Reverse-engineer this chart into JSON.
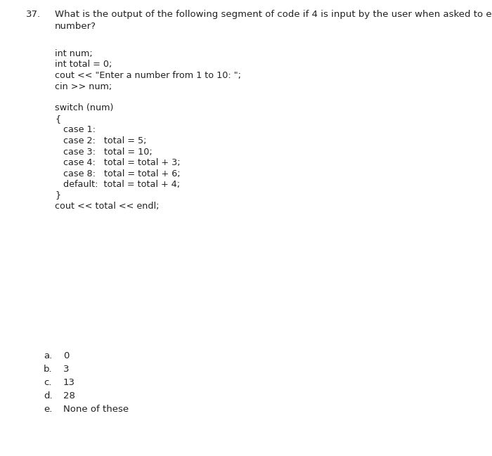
{
  "question_number": "37.",
  "question_text_line1": "What is the output of the following segment of code if 4 is input by the user when asked to enter a",
  "question_text_line2": "number?",
  "code_lines": [
    "int num;",
    "int total = 0;",
    "cout << \"Enter a number from 1 to 10: \";",
    "cin >> num;",
    "",
    "switch (num)",
    "{",
    "   case 1:",
    "   case 2:   total = 5;",
    "   case 3:   total = 10;",
    "   case 4:   total = total + 3;",
    "   case 8:   total = total + 6;",
    "   default:  total = total + 4;",
    "}",
    "cout << total << endl;"
  ],
  "answers": [
    [
      "a.",
      "0"
    ],
    [
      "b.",
      "3"
    ],
    [
      "c.",
      "13"
    ],
    [
      "d.",
      "28"
    ],
    [
      "e.",
      "None of these"
    ]
  ],
  "divider_color": "#888888",
  "bg_color": "#ffffff",
  "text_color": "#222222",
  "font_size_question": 9.5,
  "font_size_code": 9.2,
  "font_size_answers": 9.5
}
